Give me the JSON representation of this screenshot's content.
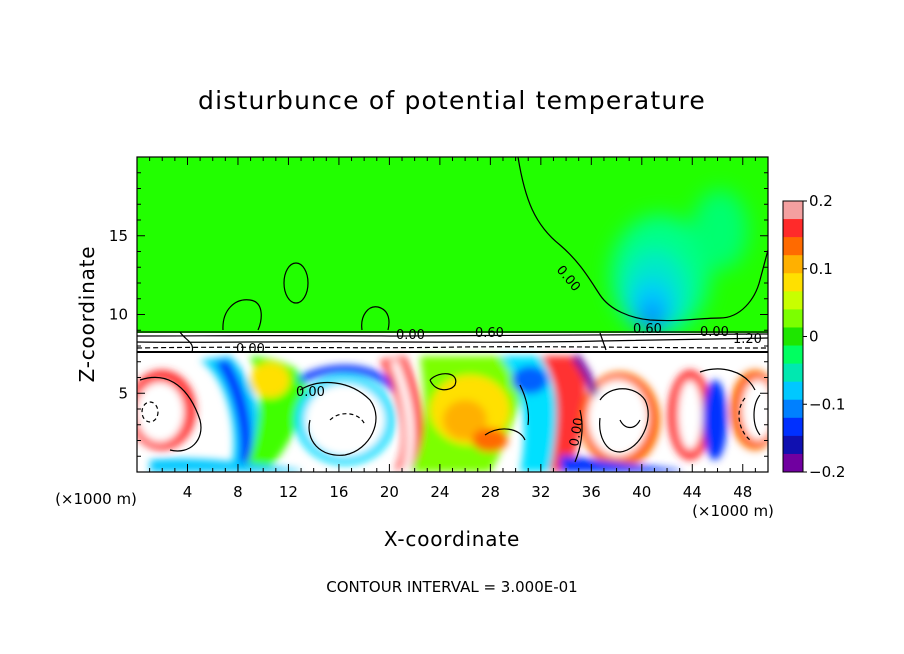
{
  "chart_data": {
    "type": "heatmap",
    "title": "disturbunce of potential temperature",
    "xlabel": "X-coordinate",
    "ylabel": "Z-coordinate",
    "x_unit": "(×1000 m)",
    "z_unit": "(×1000 m)",
    "xlim": [
      0,
      50
    ],
    "zlim": [
      0,
      20
    ],
    "x_ticks": [
      "4",
      "8",
      "12",
      "16",
      "20",
      "24",
      "28",
      "32",
      "36",
      "40",
      "44",
      "48"
    ],
    "z_ticks": [
      "5",
      "10",
      "15"
    ],
    "colorbar": {
      "range": [
        -0.2,
        0.2
      ],
      "tick_labels": [
        "0.2",
        "0.1",
        "0",
        "−0.1",
        "−0.2"
      ],
      "colors": [
        "#f4a0a0",
        "#ff2a2a",
        "#ff6a00",
        "#ffb000",
        "#ffe000",
        "#c8ff00",
        "#7cff00",
        "#1ee600",
        "#00ff60",
        "#00e8b0",
        "#00c8ff",
        "#0080ff",
        "#0030ff",
        "#1010b0",
        "#7000a0"
      ]
    },
    "contour_labels": [
      "0.00",
      "0.00",
      "0.60",
      "0.00",
      "0.60",
      "0.00",
      "0.00",
      "1.20",
      "0.00"
    ],
    "contour_interval": "CONTOUR INTERVAL = 3.000E-01"
  }
}
